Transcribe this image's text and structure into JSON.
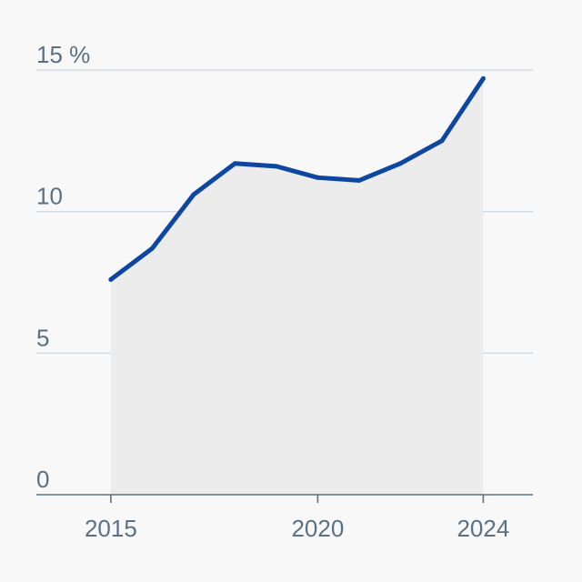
{
  "chart_data": {
    "type": "area",
    "title": "",
    "xlabel": "",
    "ylabel": "",
    "x": [
      2015,
      2016,
      2017,
      2018,
      2019,
      2020,
      2021,
      2022,
      2023,
      2024
    ],
    "series": [
      {
        "name": "",
        "values": [
          7.6,
          8.7,
          10.6,
          11.7,
          11.6,
          11.2,
          11.1,
          11.7,
          12.5,
          14.7
        ]
      }
    ],
    "xlim": [
      2013.2,
      2025.2
    ],
    "ylim": [
      0,
      15
    ],
    "x_ticks": [
      {
        "value": 2015,
        "label": "2015"
      },
      {
        "value": 2020,
        "label": "2020"
      },
      {
        "value": 2024,
        "label": "2024"
      }
    ],
    "y_ticks": [
      {
        "value": 15,
        "label": "15 %"
      },
      {
        "value": 10,
        "label": "10"
      },
      {
        "value": 5,
        "label": "5"
      },
      {
        "value": 0,
        "label": "0"
      }
    ],
    "grid": true,
    "legend": "none",
    "colors": {
      "line": "#0d47a1",
      "area": "#ececec",
      "grid": "#c9d3dc",
      "axis": "#5a7184",
      "label": "#5a7184",
      "background": "#f8f8f8"
    }
  }
}
